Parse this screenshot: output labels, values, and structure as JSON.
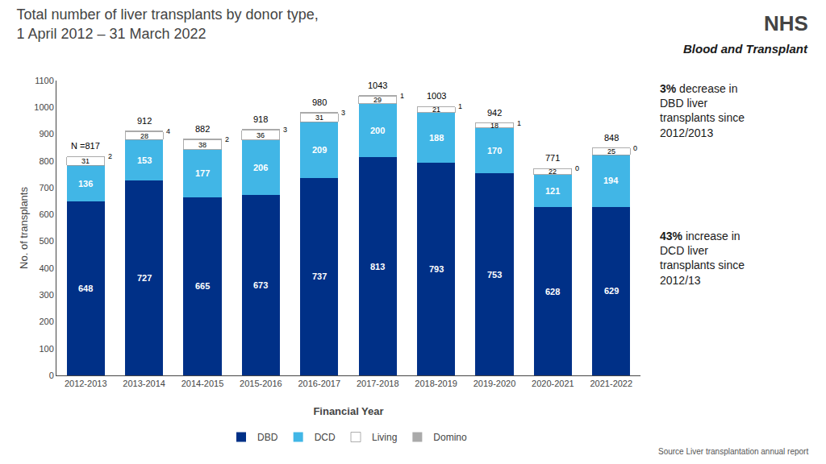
{
  "chart_data": {
    "type": "bar",
    "title": "Total number of liver transplants by donor type,",
    "subtitle": "1 April 2012 – 31 March 2022",
    "xlabel": "Financial Year",
    "ylabel": "No. of transplants",
    "categories": [
      "2012-2013",
      "2013-2014",
      "2014-2015",
      "2015-2016",
      "2016-2017",
      "2017-2018",
      "2018-2019",
      "2019-2020",
      "2020-2021",
      "2021-2022"
    ],
    "series": [
      {
        "name": "DBD",
        "color": "#003087",
        "values": [
          648,
          727,
          665,
          673,
          737,
          813,
          793,
          753,
          628,
          629
        ]
      },
      {
        "name": "DCD",
        "color": "#41b6e6",
        "values": [
          136,
          153,
          177,
          206,
          209,
          200,
          188,
          170,
          121,
          194
        ]
      },
      {
        "name": "Living",
        "color": "#ffffff",
        "values": [
          31,
          28,
          38,
          36,
          31,
          29,
          21,
          18,
          22,
          25
        ]
      },
      {
        "name": "Domino",
        "color": "#aaaaaa",
        "values": [
          2,
          4,
          2,
          3,
          3,
          1,
          1,
          1,
          0,
          0
        ]
      }
    ],
    "totals": {
      "values": [
        817,
        912,
        882,
        918,
        980,
        1043,
        1003,
        942,
        771,
        848
      ],
      "value_labels": [
        "N =817",
        "912",
        "882",
        "918",
        "980",
        "1043",
        "1003",
        "942",
        "771",
        "848"
      ]
    },
    "stacked": true,
    "data_labels": true,
    "ylim": [
      0,
      1100
    ],
    "yticks": [
      0,
      100,
      200,
      300,
      400,
      500,
      600,
      700,
      800,
      900,
      1000,
      1100
    ],
    "grid": false,
    "legend": "bottom",
    "annotations": [
      [
        "3% decrease in",
        "DBD liver",
        "transplants since",
        "2012/2013"
      ],
      [
        "43% increase in",
        "DCD liver",
        "transplants since",
        "2012/13"
      ]
    ],
    "logo": "NHS",
    "logo_caption": "Blood and Transplant",
    "source": "Source Liver transplantation annual report"
  }
}
